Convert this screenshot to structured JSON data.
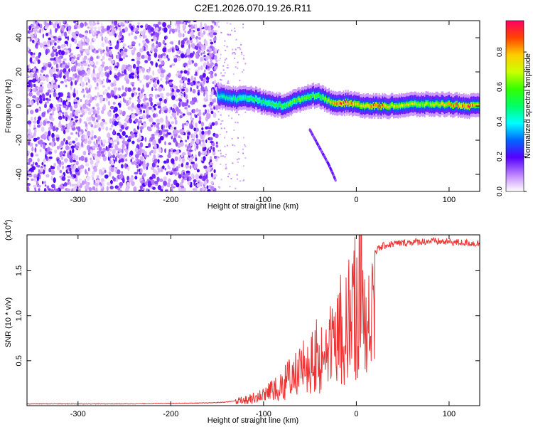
{
  "title": "C2E1.2026.070.19.26.R11",
  "chart_data": [
    {
      "type": "heatmap",
      "title": "C2E1.2026.070.19.26.R11",
      "xlabel": "Height of straight line (km)",
      "ylabel": "Frequency (Hz)",
      "xlim": [
        -355,
        133
      ],
      "ylim": [
        -50,
        50
      ],
      "xticks": [
        -300,
        -200,
        -100,
        0,
        100
      ],
      "xtick_labels": [
        "-300",
        "-200",
        "-100",
        "0",
        "100"
      ],
      "yticks": [
        -40,
        -20,
        0,
        20,
        40
      ],
      "ytick_labels": [
        "-40",
        "-20",
        "0",
        "20",
        "40"
      ],
      "noise_region_x": [
        -355,
        -150
      ],
      "signal_band": {
        "x": [
          -150,
          -140,
          -130,
          -120,
          -110,
          -100,
          -90,
          -80,
          -70,
          -60,
          -50,
          -40,
          -30,
          -20,
          -10,
          0,
          10,
          20,
          40,
          60,
          80,
          100,
          120,
          133
        ],
        "center_freq": [
          6,
          5,
          4,
          5,
          4,
          2,
          1,
          0,
          2,
          4,
          6,
          6,
          3,
          1,
          2,
          1,
          0,
          0,
          0,
          1,
          1,
          1,
          0,
          0
        ],
        "peak_amplitude": [
          0.45,
          0.45,
          0.5,
          0.5,
          0.55,
          0.5,
          0.55,
          0.6,
          0.6,
          0.65,
          0.6,
          0.6,
          0.7,
          0.9,
          0.9,
          0.8,
          0.8,
          0.9,
          0.75,
          0.7,
          0.7,
          0.8,
          0.9,
          0.7
        ]
      },
      "secondary_trace": {
        "x": [
          -50,
          -45,
          -40,
          -35,
          -30,
          -25,
          -22
        ],
        "freq": [
          -14,
          -19,
          -24,
          -29,
          -34,
          -40,
          -44
        ]
      },
      "colorbar": {
        "label": "Normalized spectral amplitude",
        "range": [
          0.0,
          0.98
        ],
        "ticks": [
          0.0,
          0.2,
          0.4,
          0.6,
          0.8
        ],
        "tick_labels": [
          "0.0",
          "0.2",
          "0.4",
          "0.6",
          "0.8"
        ]
      }
    },
    {
      "type": "line",
      "xlabel": "Height of straight line (km)",
      "ylabel": "SNR (10 * v/v)",
      "multiplier": "(x10",
      "multiplier_exp": "4",
      "multiplier_close": ")",
      "xlim": [
        -355,
        133
      ],
      "ylim": [
        0,
        1.9
      ],
      "xticks": [
        -300,
        -200,
        -100,
        0,
        100
      ],
      "xtick_labels": [
        "-300",
        "-200",
        "-100",
        "0",
        "100"
      ],
      "yticks": [
        0.5,
        1.0,
        1.5
      ],
      "ytick_labels": [
        "0.5",
        "1.0",
        "1.5"
      ],
      "color": "#ee3333",
      "series": [
        {
          "name": "SNR",
          "x": [
            -355,
            -300,
            -250,
            -200,
            -160,
            -140,
            -120,
            -110,
            -100,
            -90,
            -80,
            -70,
            -60,
            -50,
            -40,
            -30,
            -20,
            -10,
            -5,
            0,
            5,
            10,
            15,
            20,
            30,
            40,
            60,
            80,
            100,
            120,
            133
          ],
          "y": [
            0.02,
            0.02,
            0.02,
            0.025,
            0.03,
            0.04,
            0.07,
            0.1,
            0.15,
            0.22,
            0.28,
            0.35,
            0.45,
            0.55,
            0.65,
            0.75,
            0.9,
            1.05,
            1.15,
            1.25,
            1.4,
            1.55,
            1.65,
            1.72,
            1.78,
            1.8,
            1.82,
            1.83,
            1.82,
            1.81,
            1.8
          ]
        }
      ]
    }
  ]
}
